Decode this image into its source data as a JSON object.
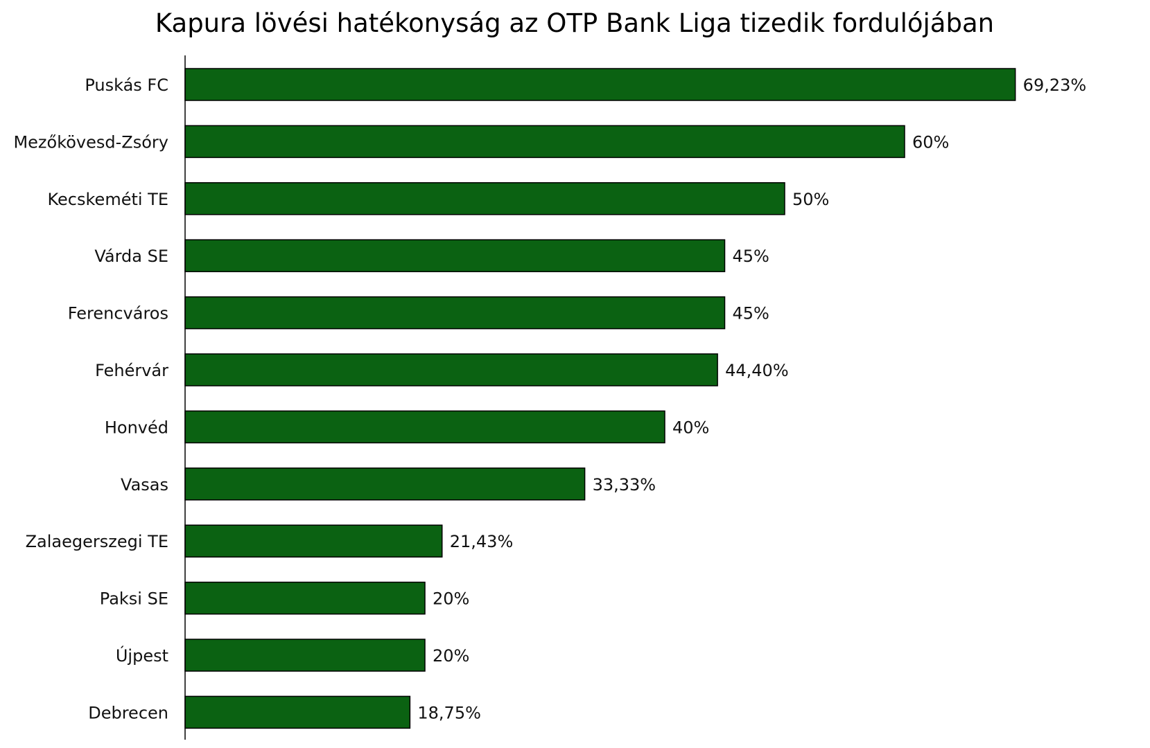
{
  "chart_data": {
    "type": "bar",
    "orientation": "horizontal",
    "title": "Kapura lövési hatékonyság az OTP Bank Liga tizedik fordulójában",
    "xlabel": "",
    "ylabel": "",
    "xlim": [
      0,
      100
    ],
    "grid": false,
    "legend": "none",
    "bar_color": "#0b6212",
    "categories": [
      "Puskás FC",
      "Mezőkövesd-Zsóry",
      "Kecskeméti TE",
      "Várda SE",
      "Ferencváros",
      "Fehérvár",
      "Honvéd",
      "Vasas",
      "Zalaegerszegi TE",
      "Paksi SE",
      "Újpest",
      "Debrecen"
    ],
    "values": [
      69.23,
      60,
      50,
      45,
      45,
      44.4,
      40,
      33.33,
      21.43,
      20,
      20,
      18.75
    ],
    "data_labels": [
      "69,23%",
      "60%",
      "50%",
      "45%",
      "45%",
      "44,40%",
      "40%",
      "33,33%",
      "21,43%",
      "20%",
      "20%",
      "18,75%"
    ]
  }
}
